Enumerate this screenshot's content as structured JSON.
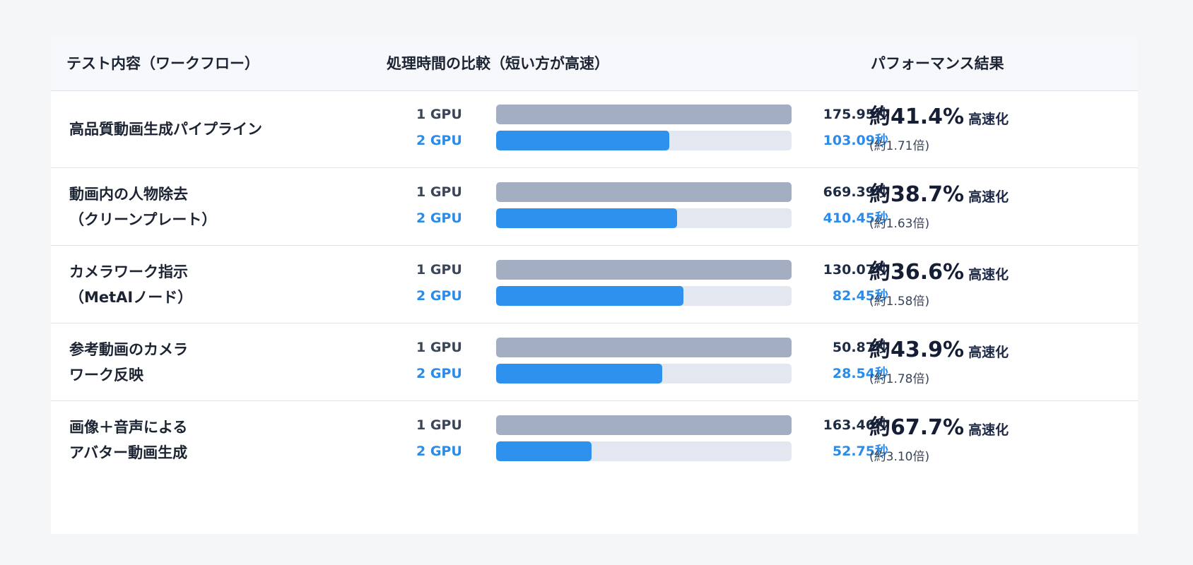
{
  "headers": {
    "test": "テスト内容（ワークフロー）",
    "time": "処理時間の比較（短い方が高速）",
    "perf": "パフォーマンス結果"
  },
  "chart_data": {
    "type": "bar",
    "orientation": "horizontal",
    "categories": [
      "高品質動画生成パイプライン",
      "動画内の人物除去\n（クリーンプレート）",
      "カメラワーク指示\n（MetAIノード）",
      "参考動画のカメラ\nワーク反映",
      "画像＋音声による\nアバター動画生成"
    ],
    "series": [
      {
        "name": "1 GPU",
        "values": [
          175.95,
          669.39,
          130.07,
          50.87,
          163.46
        ],
        "color": "#a3aec2"
      },
      {
        "name": "2 GPU",
        "values": [
          103.09,
          410.45,
          82.45,
          28.54,
          52.75
        ],
        "color": "#2f91ee"
      }
    ]
  },
  "rows": [
    {
      "label": "高品質動画生成パイプライン",
      "gpu1": "1 GPU",
      "gpu2": "2 GPU",
      "t1": "175.95秒",
      "t2": "103.09秒",
      "pct": "約41.4%",
      "suffix": "高速化",
      "ratio": "(約1.71倍)"
    },
    {
      "label": "動画内の人物除去\n（クリーンプレート）",
      "gpu1": "1 GPU",
      "gpu2": "2 GPU",
      "t1": "669.39秒",
      "t2": "410.45秒",
      "pct": "約38.7%",
      "suffix": "高速化",
      "ratio": "(約1.63倍)"
    },
    {
      "label": "カメラワーク指示\n（MetAIノード）",
      "gpu1": "1 GPU",
      "gpu2": "2 GPU",
      "t1": "130.07秒",
      "t2": "82.45秒",
      "pct": "約36.6%",
      "suffix": "高速化",
      "ratio": "(約1.58倍)"
    },
    {
      "label": "参考動画のカメラ\nワーク反映",
      "gpu1": "1 GPU",
      "gpu2": "2 GPU",
      "t1": "50.87秒",
      "t2": "28.54秒",
      "pct": "約43.9%",
      "suffix": "高速化",
      "ratio": "(約1.78倍)"
    },
    {
      "label": "画像＋音声による\nアバター動画生成",
      "gpu1": "1 GPU",
      "gpu2": "2 GPU",
      "t1": "163.46秒",
      "t2": "52.75秒",
      "pct": "約67.7%",
      "suffix": "高速化",
      "ratio": "(約3.10倍)"
    }
  ]
}
